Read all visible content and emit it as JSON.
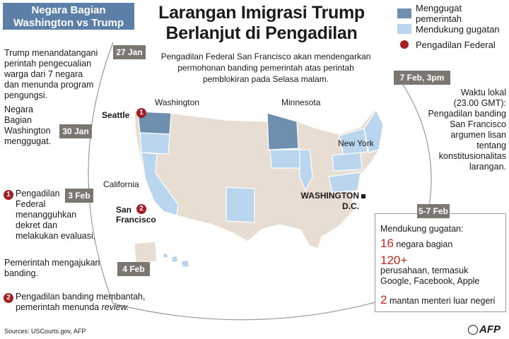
{
  "header": {
    "box_line1": "Negara Bagian",
    "box_line2": "Washington vs Trump",
    "title_line1": "Larangan Imigrasi Trump",
    "title_line2": "Berlanjut di Pengadilan",
    "subtitle_line1": "Pengadilan Federal San Francisco akan mendengarkan",
    "subtitle_line2": "permohonan banding pemerintah atas perintah",
    "subtitle_line3": "pemblokiran pada Selasa malam."
  },
  "legend": {
    "items": [
      {
        "label": "Menggugat pemerintah",
        "color": "#6f8fae"
      },
      {
        "label": "Mendukung gugatan",
        "color": "#b9d6ee"
      },
      {
        "label": "Pengadilan Federal",
        "color": "#a31f24"
      }
    ]
  },
  "timeline": {
    "jan27": {
      "date": "27 Jan",
      "text": [
        "Trump menandatangani",
        "perintah pengecualian",
        "warga dari 7 negara",
        "dan menunda program",
        "pengungsi."
      ]
    },
    "jan30": {
      "date": "30 Jan",
      "text": [
        "Negara",
        "Bagian",
        "Washington",
        "menggugat."
      ]
    },
    "feb3": {
      "date": "3 Feb",
      "badge": "1",
      "text": [
        "Pengadilan",
        "Federal",
        "menangguhkan",
        "dekret dan",
        "melakukan evaluasi."
      ]
    },
    "feb4": {
      "date": "4 Feb",
      "text": [
        "Pemerintah mengajukan",
        "banding."
      ],
      "badge": "2",
      "text2_line1": "Pengadilan banding membantah,",
      "text2_line2_prefix": "pemerintah menunda ",
      "text2_line2_italic": "review."
    },
    "feb7": {
      "date": "7 Feb, 3pm",
      "text": [
        "Waktu lokal",
        "(23.00 GMT):",
        "Pengadilan banding",
        "San Francisco",
        "argumen lisan",
        "tentang",
        "konstitusionalitas",
        "larangan."
      ]
    },
    "feb5_7": {
      "date": "5-7 Feb"
    }
  },
  "map": {
    "labels": {
      "washington": "Washington",
      "minnesota": "Minnesota",
      "new_york": "New York",
      "california": "California",
      "seattle": "Seattle",
      "sf_line1": "San",
      "sf_line2": "Francisco",
      "dc_line1": "WASHINGTON",
      "dc_line2": "D.C."
    },
    "badges": {
      "seattle": "1",
      "sf": "2"
    },
    "colors": {
      "land": "#e8ddd2",
      "border": "#ffffff",
      "sued": "#6f8fae",
      "support": "#b9d6ee",
      "court": "#a31f24"
    }
  },
  "support": {
    "heading": "Mendukung gugatan:",
    "n1": "16",
    "t1": "negara bagian",
    "n2": "120+",
    "t2a": "perusahaan, termasuk",
    "t2b": "Google, Facebook, Apple",
    "n3": "2",
    "t3": "mantan menteri luar negeri"
  },
  "footer": {
    "sources": "Sources: USCourts.gov, AFP",
    "logo": "AFP"
  }
}
